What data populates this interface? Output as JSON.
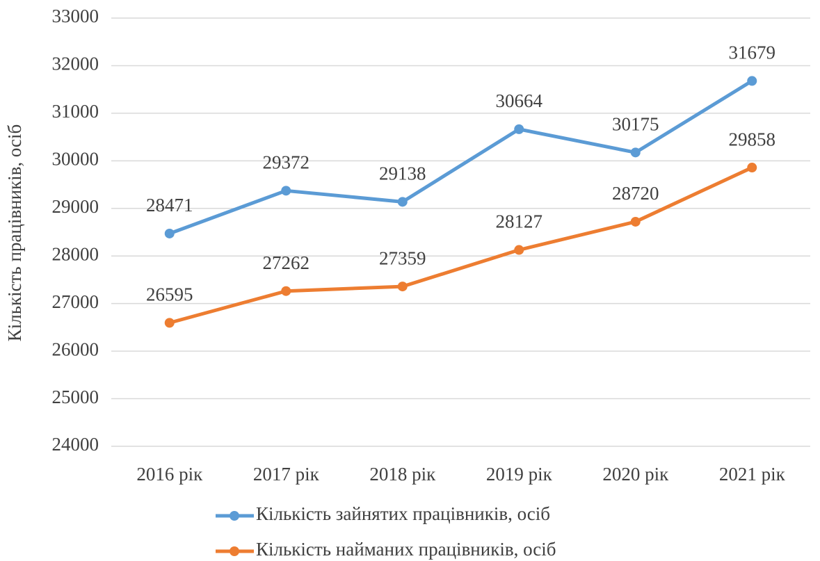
{
  "chart_data": {
    "type": "line",
    "y_label": "Кількість працівників, осіб",
    "categories": [
      "2016 рік",
      "2017 рік",
      "2018 рік",
      "2019 рік",
      "2020 рік",
      "2021 рік"
    ],
    "series": [
      {
        "name": "Кількість зайнятих працівників, осіб",
        "color": "#5b9bd5",
        "values": [
          28471,
          29372,
          29138,
          30664,
          30175,
          31679
        ]
      },
      {
        "name": "Кількість найманих працівників, осіб",
        "color": "#ed7d31",
        "values": [
          26595,
          27262,
          27359,
          28127,
          28720,
          29858
        ]
      }
    ],
    "ylim": [
      24000,
      33000
    ],
    "yticks": [
      24000,
      25000,
      26000,
      27000,
      28000,
      29000,
      30000,
      31000,
      32000,
      33000
    ],
    "grid": true,
    "legend": "bottom"
  }
}
